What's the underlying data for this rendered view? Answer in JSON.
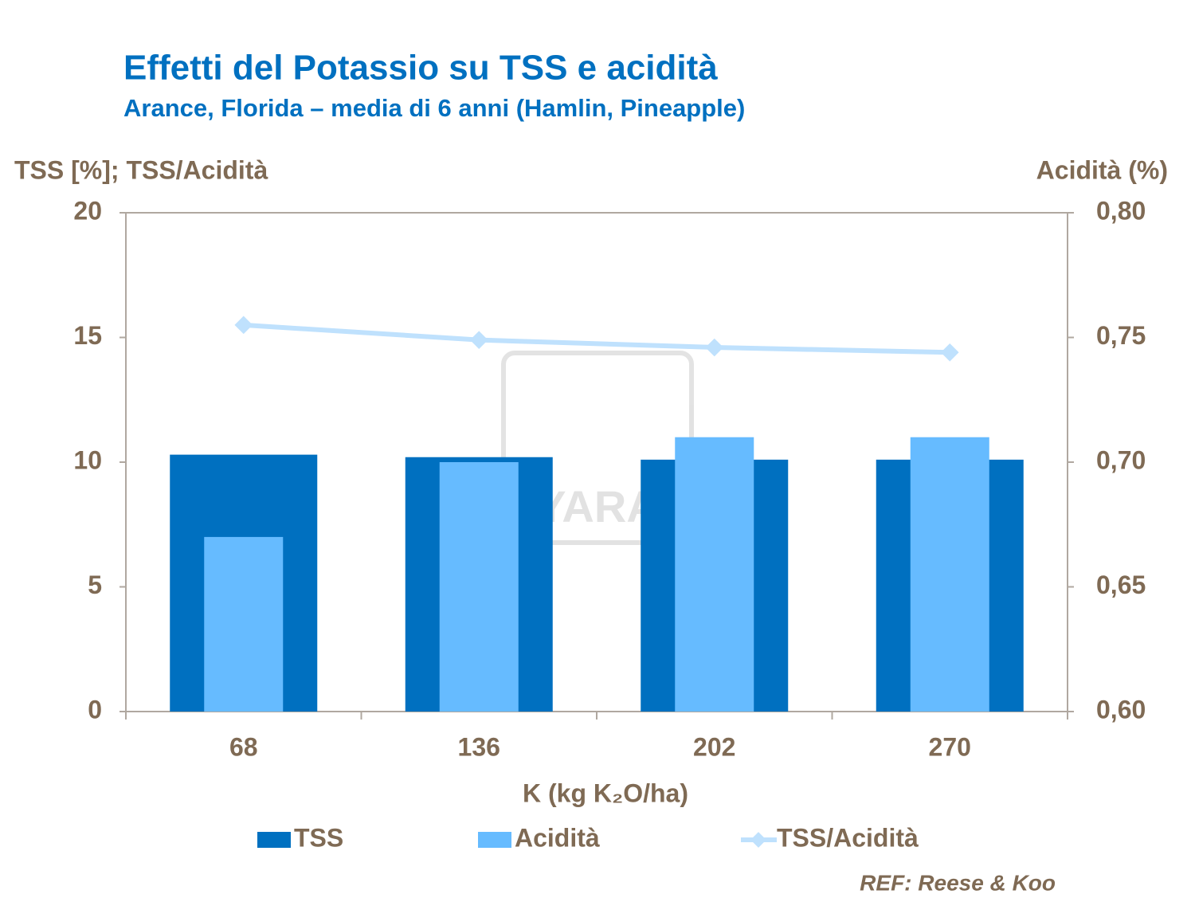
{
  "chart_data": {
    "type": "bar",
    "title": "Effetti del Potassio su TSS e acidità",
    "subtitle": "Arance, Florida – media di 6 anni (Hamlin, Pineapple)",
    "y_label": "TSS [%]; TSS/Acidità",
    "y2_label": "Acidità (%)",
    "x_label": "K (kg K₂O/ha)",
    "source": "REF: Reese & Koo",
    "watermark": "YARA",
    "categories": [
      "68",
      "136",
      "202",
      "270"
    ],
    "series": [
      {
        "name": "TSS",
        "type": "bar",
        "color": "#0070c0",
        "values": [
          10.3,
          10.2,
          10.1,
          10.1
        ]
      },
      {
        "name": "Acidità",
        "type": "bar",
        "axis": "y2",
        "color": "#66bbff",
        "values": [
          0.67,
          0.7,
          0.71,
          0.71
        ]
      },
      {
        "name": "TSS/Acidità",
        "type": "line",
        "color": "#bfe1fd",
        "values": [
          15.5,
          14.9,
          14.6,
          14.4
        ]
      }
    ],
    "ylim": [
      0,
      20
    ],
    "yticks": [
      0,
      5,
      10,
      15,
      20
    ],
    "y2lim": [
      0.6,
      0.8
    ],
    "y2ticks": [
      {
        "value": 0.6,
        "label": "0,60"
      },
      {
        "value": 0.65,
        "label": "0,65"
      },
      {
        "value": 0.7,
        "label": "0,70"
      },
      {
        "value": 0.75,
        "label": "0,75"
      },
      {
        "value": 0.8,
        "label": "0,80"
      }
    ],
    "grid": false
  }
}
